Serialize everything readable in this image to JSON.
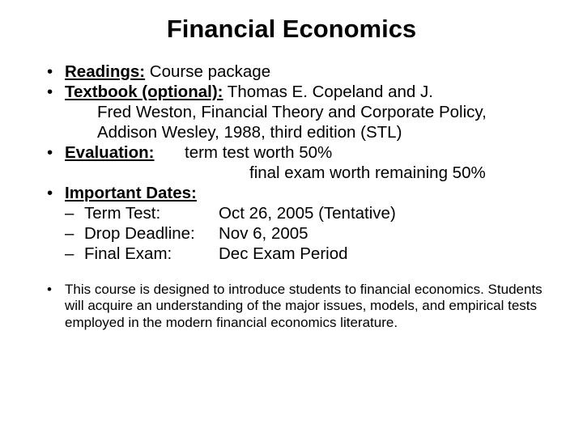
{
  "title": "Financial Economics",
  "readings": {
    "label": "Readings:",
    "text": " Course package"
  },
  "textbook": {
    "label": "Textbook (optional):",
    "text1": " Thomas E. Copeland and J.",
    "text2": "Fred Weston, Financial Theory and Corporate Policy,",
    "text3": "Addison Wesley, 1988, third edition (STL)"
  },
  "evaluation": {
    "label": "Evaluation:",
    "line1": "term test worth 50%",
    "line2": "final exam worth remaining 50%"
  },
  "dates": {
    "label": "Important Dates:",
    "items": [
      {
        "key": "Term Test:",
        "val": "Oct 26, 2005 (Tentative)"
      },
      {
        "key": "Drop Deadline:",
        "val": "Nov 6, 2005"
      },
      {
        "key": "Final Exam:",
        "val": "Dec Exam Period"
      }
    ]
  },
  "footnote": "This course is designed to introduce students to financial economics. Students will acquire an understanding of the major issues, models, and empirical tests employed in the modern financial economics literature."
}
